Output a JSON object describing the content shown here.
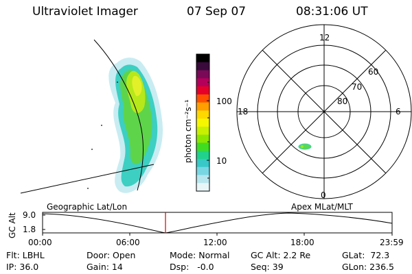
{
  "header": {
    "instrument": "Ultraviolet Imager",
    "date": "07 Sep 07",
    "time": "08:31:06 UT"
  },
  "colorbar": {
    "unit_label": "photon cm⁻²s⁻¹",
    "ticks": [
      "100",
      "10"
    ],
    "colors": [
      "#000000",
      "#3a0a3c",
      "#7a0a58",
      "#b4005a",
      "#e4002a",
      "#ff5000",
      "#ffa000",
      "#ffd800",
      "#f6f600",
      "#c8f000",
      "#8ce600",
      "#40dc20",
      "#20d28c",
      "#38c8c8",
      "#78d6e2",
      "#b8e6ee",
      "#e8f6f8"
    ]
  },
  "polar_plot": {
    "mlt_labels": [
      "12",
      "18",
      "6",
      "0"
    ],
    "mlat_labels": [
      "60",
      "70",
      "80"
    ]
  },
  "panel_labels": {
    "left": "Geographic Lat/Lon",
    "right": "Apex MLat/MLT"
  },
  "altitude_plot": {
    "axis_label": "GC Alt",
    "y_ticks": [
      "9.0",
      "1.8"
    ],
    "x_ticks": [
      "00:00",
      "06:00",
      "12:00",
      "18:00",
      "23:59"
    ],
    "current_time_marker": "08:31"
  },
  "status": {
    "filter": "Flt: LBHL",
    "ip": "IP: 36.0",
    "door": "Door: Open",
    "gain": "Gain: 14",
    "mode": "Mode: Normal",
    "dsp": "Dsp:   -0.0",
    "gc_alt": "GC Alt: 2.2 Re",
    "seq": "Seq: 39",
    "glat": "GLat:  72.3",
    "glon": "GLon: 236.5"
  }
}
